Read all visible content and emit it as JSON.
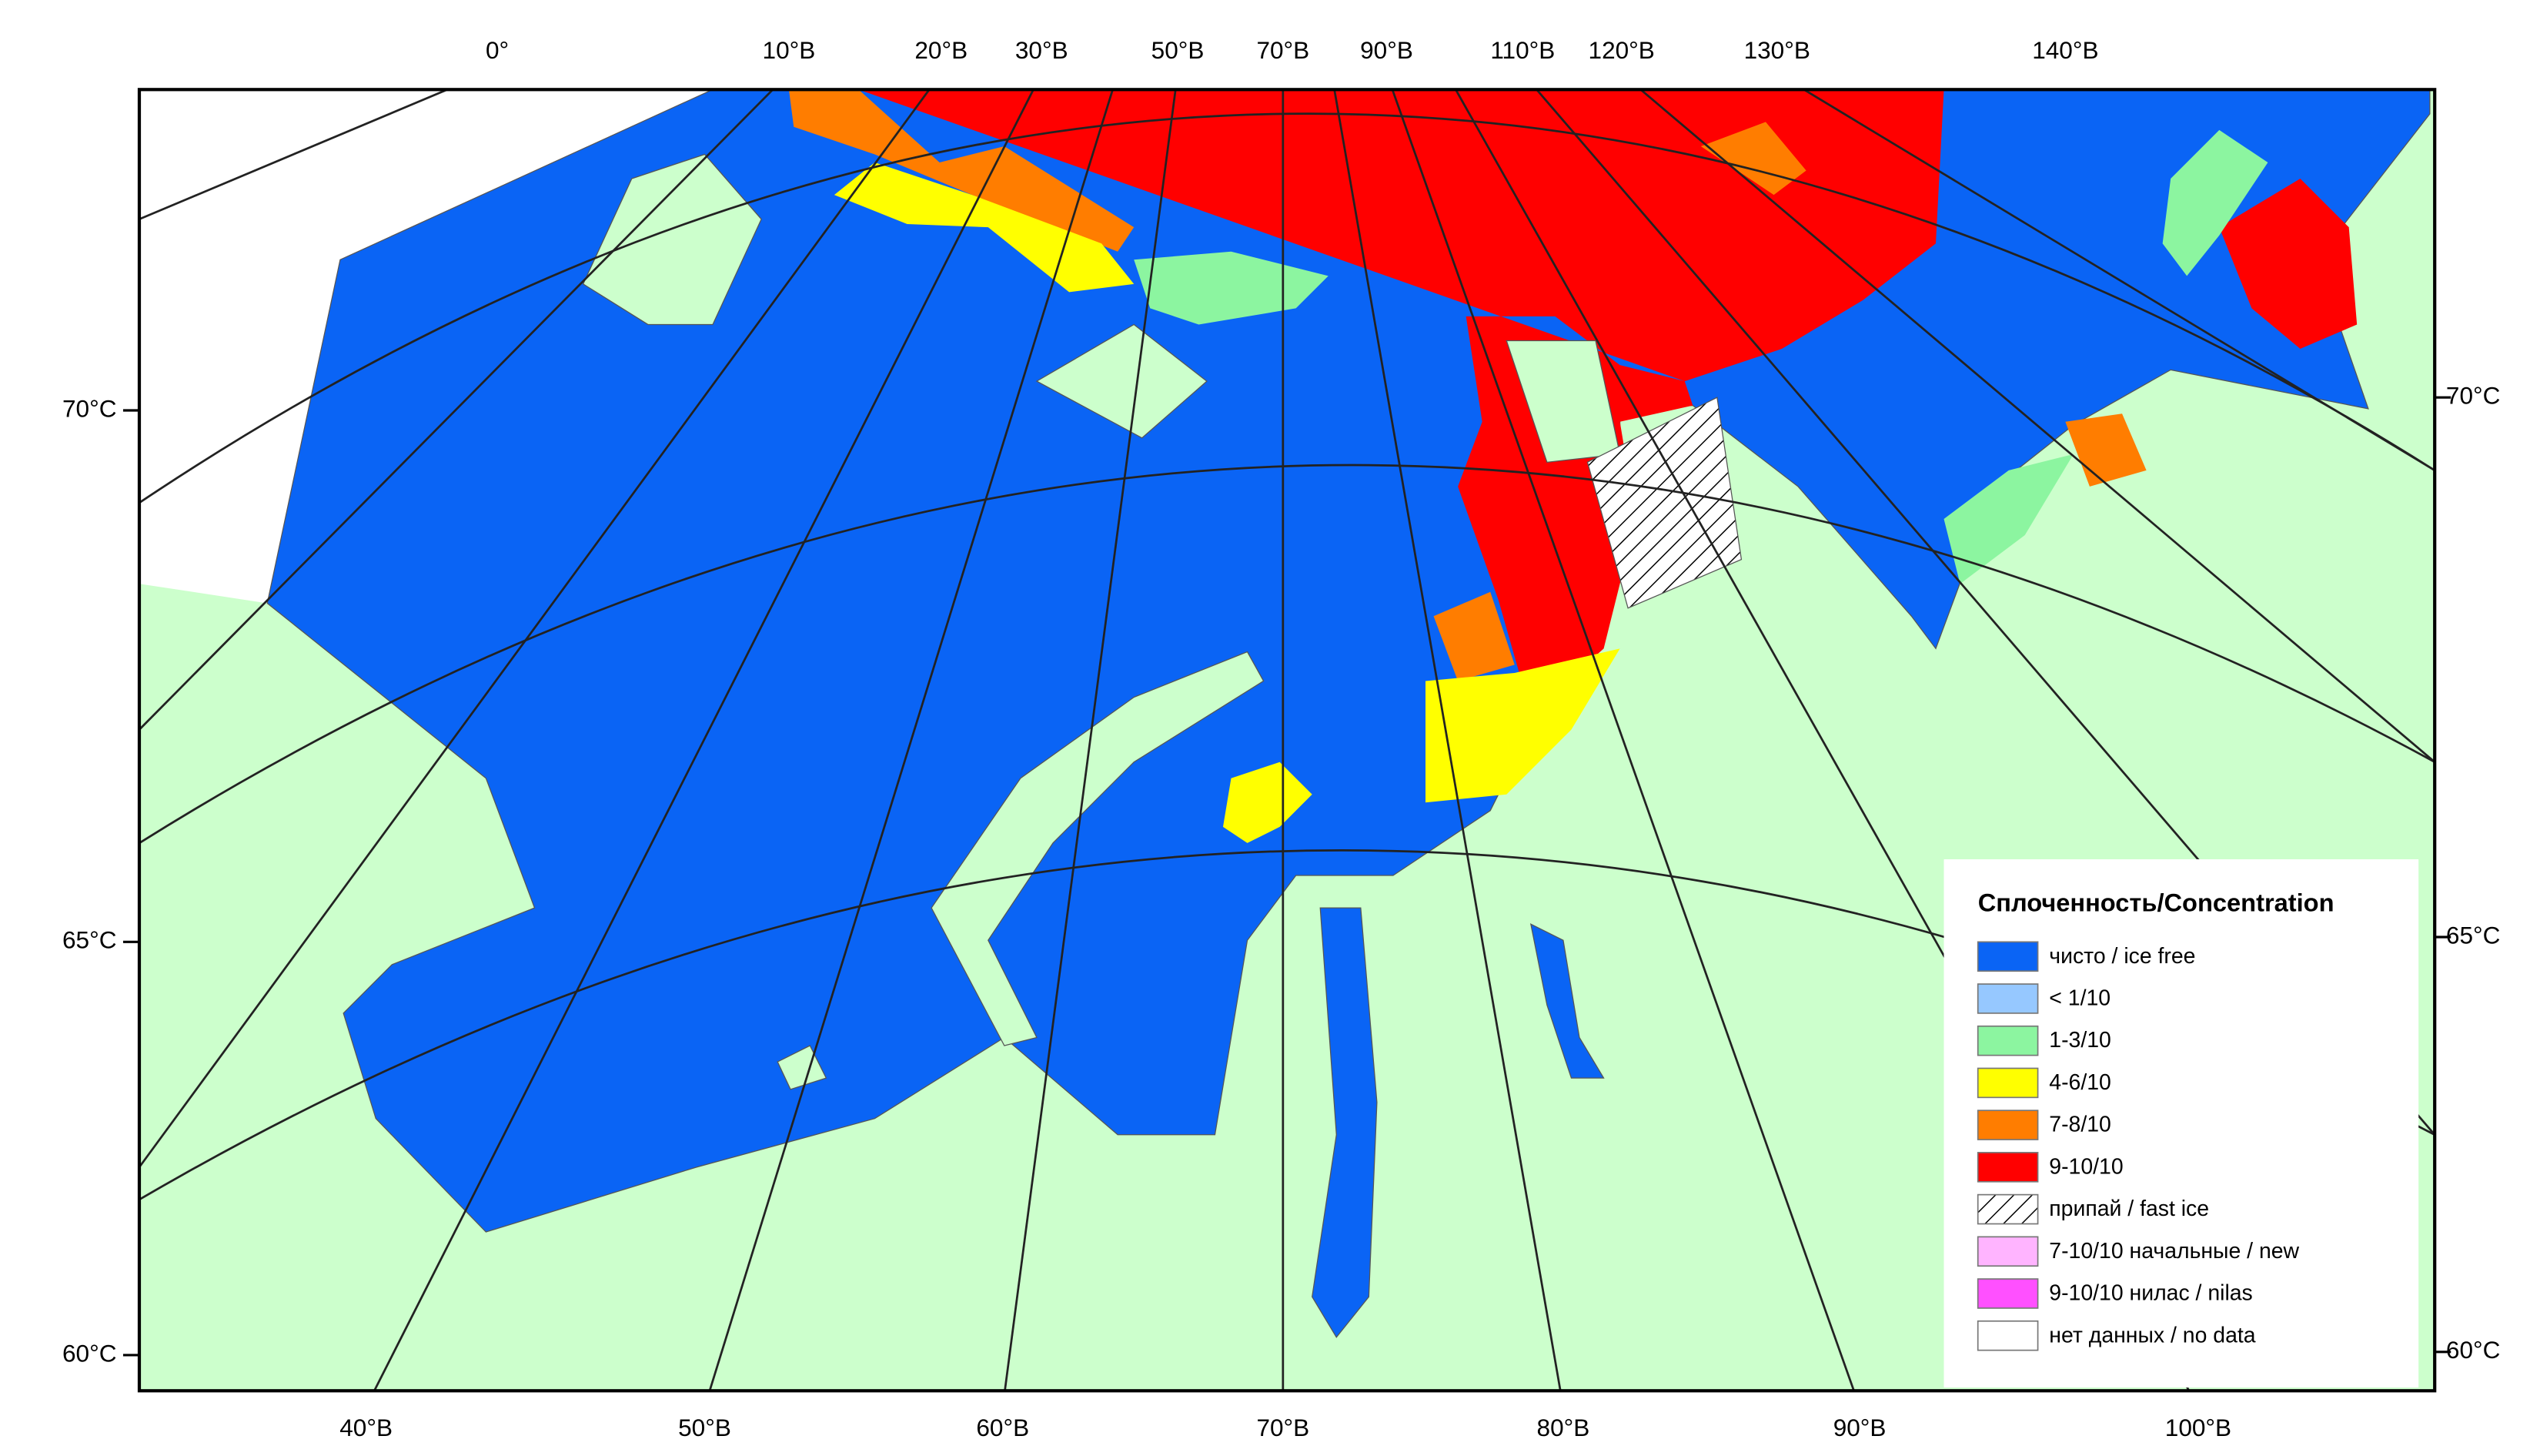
{
  "map": {
    "top_labels": [
      "0°",
      "10°В",
      "20°В",
      "30°В",
      "50°В",
      "70°В",
      "90°В",
      "110°В",
      "120°В",
      "130°В",
      "140°В"
    ],
    "bottom_labels": [
      "40°В",
      "50°В",
      "60°В",
      "70°В",
      "80°В",
      "90°В",
      "100°В"
    ],
    "left_labels": [
      "70°С",
      "65°С",
      "60°С"
    ],
    "right_labels": [
      "70°С",
      "65°С",
      "60°С"
    ],
    "legend": {
      "title": "Сплоченность/Concentration",
      "items": [
        {
          "label": "чисто / ice free",
          "color": "#0a64f5"
        },
        {
          "label": "< 1/10",
          "color": "#96c8ff"
        },
        {
          "label": "1-3/10",
          "color": "#8cf5a0"
        },
        {
          "label": "4-6/10",
          "color": "#ffff00"
        },
        {
          "label": "7-8/10",
          "color": "#ff7d00"
        },
        {
          "label": "9-10/10",
          "color": "#ff0000"
        },
        {
          "label": "припай / fast ice",
          "color": "hatch"
        },
        {
          "label": "7-10/10 начальные / new",
          "color": "#ffb4ff"
        },
        {
          "label": "9-10/10 нилас / nilas",
          "color": "#ff50ff"
        },
        {
          "label": "нет данных / no data",
          "color": "#ffffff"
        }
      ]
    }
  }
}
